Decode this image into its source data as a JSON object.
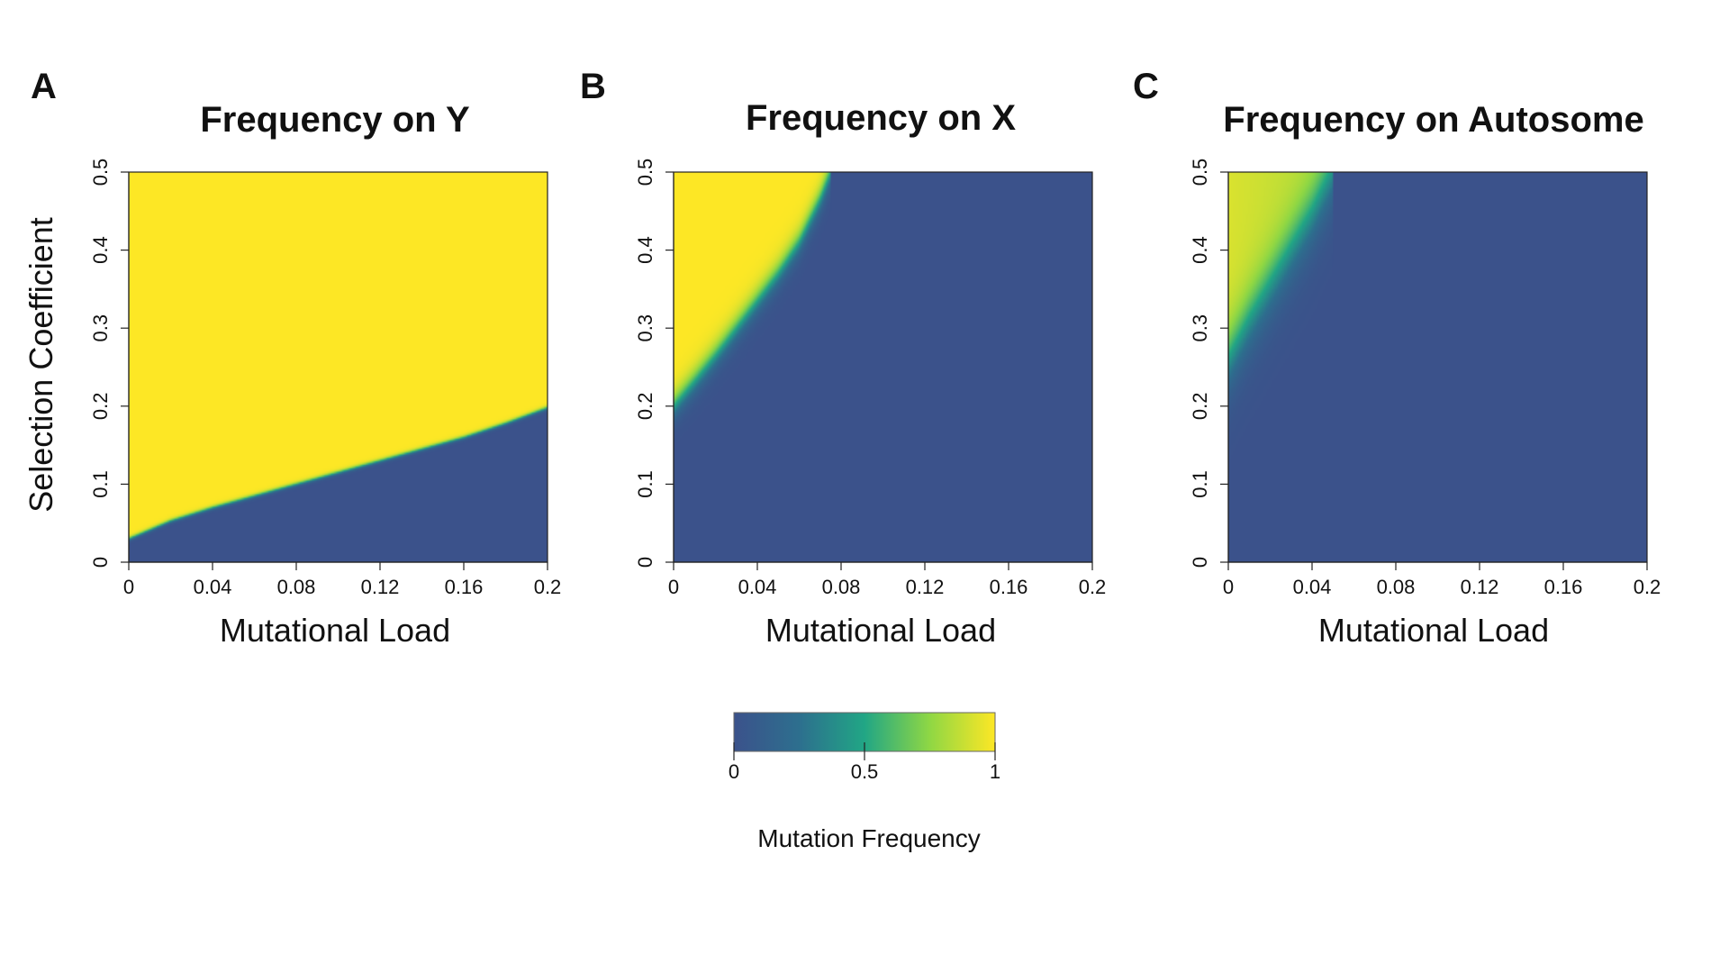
{
  "colorbar": {
    "label": "Mutation Frequency",
    "ticks": [
      "0",
      "0.5",
      "1"
    ],
    "tick_values": [
      0,
      0.5,
      1
    ],
    "colormap": "viridis-like",
    "low_color": "#3b528b",
    "mid_color": "#21a685",
    "high_color": "#fde725"
  },
  "chart_data": [
    {
      "type": "heatmap",
      "panel": "A",
      "title": "Frequency on Y",
      "xlabel": "Mutational Load",
      "ylabel": "Selection Coefficient",
      "xlim": [
        0,
        0.2
      ],
      "ylim": [
        0,
        0.5
      ],
      "xticks": [
        "0",
        "0.04",
        "0.08",
        "0.12",
        "0.16",
        "0.2"
      ],
      "xtick_values": [
        0,
        0.04,
        0.08,
        0.12,
        0.16,
        0.2
      ],
      "yticks": [
        "0",
        "0.1",
        "0.2",
        "0.3",
        "0.4",
        "0.5"
      ],
      "ytick_values": [
        0,
        0.1,
        0.2,
        0.3,
        0.4,
        0.5
      ],
      "boundary": {
        "description": "frequency ≈ 1 above the line, ≈ 0 below",
        "x": [
          0,
          0.02,
          0.04,
          0.06,
          0.08,
          0.1,
          0.12,
          0.14,
          0.16,
          0.18,
          0.2
        ],
        "y": [
          0.03,
          0.053,
          0.07,
          0.085,
          0.1,
          0.115,
          0.13,
          0.145,
          0.16,
          0.178,
          0.198
        ]
      },
      "transition_width": 0.0015
    },
    {
      "type": "heatmap",
      "panel": "B",
      "title": "Frequency on X",
      "xlabel": "Mutational Load",
      "ylabel": "",
      "xlim": [
        0,
        0.2
      ],
      "ylim": [
        0,
        0.5
      ],
      "xticks": [
        "0",
        "0.04",
        "0.08",
        "0.12",
        "0.16",
        "0.2"
      ],
      "xtick_values": [
        0,
        0.04,
        0.08,
        0.12,
        0.16,
        0.2
      ],
      "yticks": [
        "0",
        "0.1",
        "0.2",
        "0.3",
        "0.4",
        "0.5"
      ],
      "ytick_values": [
        0,
        0.1,
        0.2,
        0.3,
        0.4,
        0.5
      ],
      "boundary": {
        "description": "frequency ≈ 1 above the curve, ≈ 0 below",
        "x": [
          0,
          0.01,
          0.02,
          0.03,
          0.04,
          0.05,
          0.06,
          0.07,
          0.075
        ],
        "y": [
          0.2,
          0.232,
          0.265,
          0.3,
          0.335,
          0.37,
          0.41,
          0.465,
          0.5
        ]
      },
      "transition_width": 0.01
    },
    {
      "type": "heatmap",
      "panel": "C",
      "title": "Frequency on Autosome",
      "xlabel": "Mutational Load",
      "ylabel": "",
      "xlim": [
        0,
        0.2
      ],
      "ylim": [
        0,
        0.5
      ],
      "xticks": [
        "0",
        "0.04",
        "0.08",
        "0.12",
        "0.16",
        "0.2"
      ],
      "xtick_values": [
        0,
        0.04,
        0.08,
        0.12,
        0.16,
        0.2
      ],
      "yticks": [
        "0",
        "0.1",
        "0.2",
        "0.3",
        "0.4",
        "0.5"
      ],
      "ytick_values": [
        0,
        0.1,
        0.2,
        0.3,
        0.4,
        0.5
      ],
      "boundary": {
        "description": "high frequency near top-left, fades to ≈ 0",
        "x": [
          0,
          0.01,
          0.02,
          0.03,
          0.04,
          0.05
        ],
        "y": [
          0.26,
          0.31,
          0.355,
          0.4,
          0.445,
          0.5
        ]
      },
      "transition_width": 0.025,
      "max_value": 0.92
    }
  ]
}
